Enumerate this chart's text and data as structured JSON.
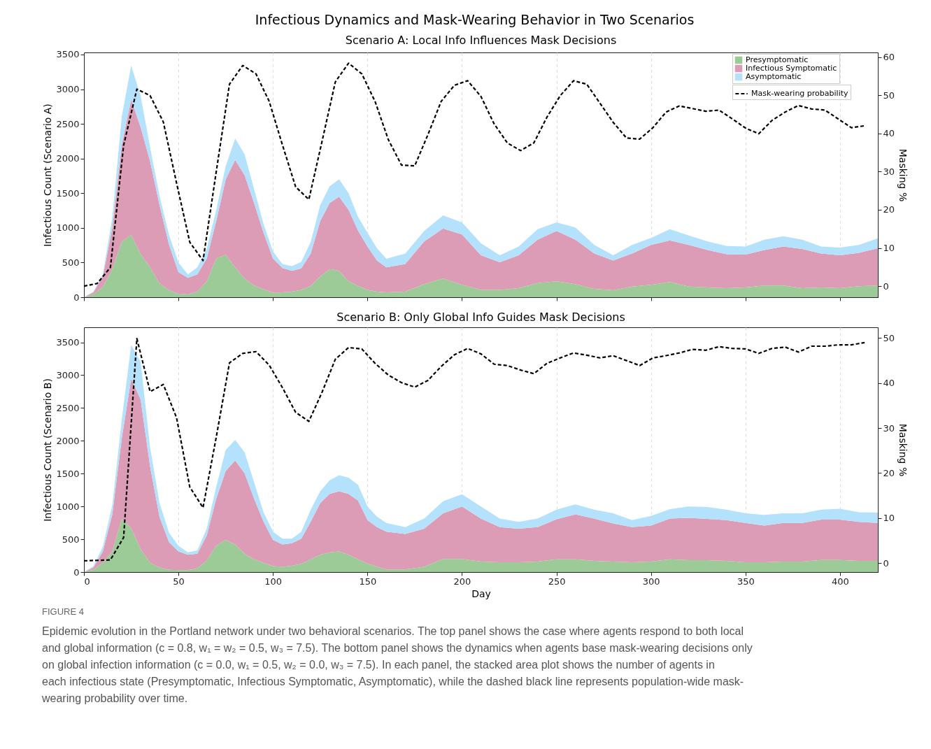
{
  "chart_data": [
    {
      "type": "area",
      "title": "Infectious Dynamics and Mask-Wearing Behavior in Two Scenarios",
      "subtitle": "Scenario A: Local Info Influences Mask Decisions",
      "ylabel": "Infectious Count (Scenario A)",
      "y2label": "Masking %",
      "stacked": true,
      "grid": "x",
      "legend": "top right",
      "tick_labels": "y",
      "xlim": [
        0,
        420
      ],
      "xticks": [
        0,
        50,
        100,
        150,
        200,
        250,
        300,
        350,
        400
      ],
      "ylim": [
        0,
        3530
      ],
      "yticks": [
        0,
        500,
        1000,
        1500,
        2000,
        2500,
        3000,
        3500
      ],
      "y2lim": [
        -2.9,
        61.2
      ],
      "y2ticks": [
        0,
        10,
        20,
        30,
        40,
        50,
        60
      ],
      "x": [
        0,
        5,
        10,
        15,
        20,
        25,
        30,
        35,
        40,
        45,
        50,
        55,
        60,
        65,
        70,
        75,
        80,
        85,
        90,
        95,
        100,
        105,
        110,
        115,
        120,
        125,
        130,
        135,
        140,
        145,
        150,
        155,
        160,
        170,
        180,
        190,
        200,
        210,
        220,
        230,
        240,
        250,
        260,
        270,
        280,
        290,
        300,
        310,
        320,
        330,
        340,
        350,
        360,
        370,
        380,
        390,
        400,
        410,
        420
      ],
      "series": [
        {
          "name": "Presymptomatic",
          "color": "#9ccb98",
          "values": [
            0,
            40,
            150,
            400,
            800,
            900,
            620,
            430,
            200,
            100,
            50,
            40,
            80,
            230,
            560,
            610,
            430,
            270,
            170,
            115,
            65,
            70,
            80,
            105,
            165,
            300,
            405,
            380,
            230,
            165,
            105,
            80,
            70,
            80,
            190,
            270,
            180,
            105,
            105,
            130,
            205,
            230,
            190,
            120,
            100,
            155,
            180,
            220,
            155,
            140,
            130,
            140,
            170,
            170,
            130,
            140,
            130,
            160,
            170
          ]
        },
        {
          "name": "Infectious Symptomatic",
          "color": "#dc9cb5",
          "values": [
            0,
            30,
            150,
            600,
            1400,
            1950,
            1830,
            1530,
            1130,
            660,
            310,
            240,
            250,
            330,
            540,
            1090,
            1550,
            1490,
            1190,
            815,
            495,
            350,
            300,
            310,
            465,
            800,
            955,
            1070,
            1030,
            795,
            625,
            450,
            360,
            400,
            615,
            720,
            725,
            500,
            400,
            475,
            625,
            725,
            640,
            510,
            430,
            475,
            575,
            600,
            600,
            540,
            490,
            475,
            510,
            560,
            565,
            490,
            475,
            480,
            535
          ]
        },
        {
          "name": "Asymptomatic",
          "color": "#b4e1fb",
          "values": [
            0,
            10,
            30,
            150,
            400,
            490,
            450,
            200,
            130,
            140,
            140,
            50,
            100,
            140,
            160,
            190,
            310,
            300,
            200,
            130,
            100,
            60,
            70,
            95,
            170,
            230,
            240,
            250,
            240,
            200,
            200,
            175,
            125,
            150,
            150,
            190,
            175,
            175,
            100,
            125,
            150,
            125,
            175,
            125,
            75,
            125,
            100,
            160,
            135,
            125,
            120,
            115,
            150,
            150,
            135,
            100,
            110,
            115,
            145
          ]
        },
        {
          "name": "Mask-wearing probability",
          "type": "line",
          "axis": "y2",
          "color": "#000000",
          "line_style": "dashed",
          "x": [
            0,
            7,
            14,
            21,
            28,
            35,
            42,
            49,
            56,
            63,
            70,
            77,
            84,
            91,
            98,
            105,
            112,
            119,
            126,
            133,
            140,
            147,
            154,
            161,
            168,
            175,
            182,
            189,
            196,
            203,
            210,
            217,
            224,
            231,
            238,
            245,
            252,
            259,
            266,
            273,
            280,
            287,
            294,
            301,
            308,
            315,
            322,
            329,
            336,
            343,
            350,
            357,
            364,
            371,
            378,
            385,
            392,
            399,
            406,
            413
          ],
          "values": [
            0.0,
            0.7,
            4.9,
            36.9,
            51.6,
            49.9,
            43.0,
            27,
            11.5,
            6.7,
            30,
            52.9,
            57.8,
            55.6,
            48.4,
            37,
            26,
            22.7,
            38,
            53.5,
            58.4,
            55.6,
            48.4,
            38.4,
            31.7,
            31.5,
            39.7,
            48.4,
            52.6,
            53.8,
            49.7,
            42.5,
            37.5,
            35.5,
            37.5,
            44.3,
            49.9,
            53.8,
            52.9,
            47.9,
            42.9,
            38.8,
            38.5,
            41.5,
            45.6,
            47.2,
            46.5,
            45.8,
            46.1,
            43.8,
            41.4,
            39.9,
            43.4,
            45.6,
            47.3,
            46.4,
            46.1,
            43.8,
            41.5,
            42.0
          ]
        }
      ]
    },
    {
      "type": "area",
      "title": "Scenario B: Only Global Info Guides Mask Decisions",
      "xlabel": "Day",
      "ylabel": "Infectious Count (Scenario B)",
      "y2label": "Masking %",
      "stacked": true,
      "grid": "x",
      "xlim": [
        0,
        420
      ],
      "xticks": [
        0,
        50,
        100,
        150,
        200,
        250,
        300,
        350,
        400
      ],
      "ylim": [
        0,
        3730
      ],
      "yticks": [
        0,
        500,
        1000,
        1500,
        2000,
        2500,
        3000,
        3500
      ],
      "y2lim": [
        -2.0,
        52.4
      ],
      "y2ticks": [
        0,
        10,
        20,
        30,
        40,
        50
      ],
      "x": [
        0,
        5,
        10,
        15,
        20,
        25,
        30,
        35,
        40,
        45,
        50,
        55,
        60,
        65,
        70,
        75,
        80,
        85,
        90,
        95,
        100,
        105,
        110,
        115,
        120,
        125,
        130,
        135,
        140,
        145,
        150,
        155,
        160,
        170,
        180,
        190,
        200,
        210,
        220,
        230,
        240,
        250,
        260,
        270,
        280,
        290,
        300,
        310,
        320,
        330,
        340,
        350,
        360,
        370,
        380,
        390,
        400,
        410,
        420
      ],
      "series": [
        {
          "color": "#9ccb98",
          "values": [
            0,
            35,
            140,
            315,
            810,
            670,
            350,
            140,
            70,
            35,
            30,
            30,
            55,
            175,
            405,
            490,
            420,
            280,
            195,
            140,
            90,
            80,
            95,
            125,
            195,
            265,
            300,
            315,
            265,
            195,
            130,
            80,
            40,
            40,
            80,
            200,
            200,
            160,
            150,
            150,
            160,
            195,
            195,
            170,
            160,
            150,
            160,
            195,
            180,
            180,
            170,
            150,
            150,
            160,
            160,
            185,
            185,
            170,
            170
          ]
        },
        {
          "color": "#dc9cb5",
          "values": [
            0,
            35,
            175,
            565,
            1225,
            2280,
            2280,
            1470,
            770,
            420,
            285,
            235,
            225,
            385,
            715,
            1050,
            1280,
            1225,
            925,
            630,
            400,
            340,
            345,
            385,
            575,
            785,
            890,
            915,
            925,
            895,
            660,
            605,
            575,
            540,
            580,
            695,
            800,
            655,
            535,
            510,
            525,
            610,
            685,
            645,
            580,
            535,
            550,
            620,
            645,
            630,
            620,
            600,
            560,
            590,
            590,
            615,
            615,
            595,
            580
          ]
        },
        {
          "color": "#b4e1fb",
          "values": [
            0,
            20,
            70,
            140,
            285,
            510,
            570,
            290,
            210,
            145,
            85,
            35,
            50,
            105,
            180,
            320,
            315,
            320,
            250,
            140,
            125,
            90,
            70,
            105,
            180,
            180,
            210,
            245,
            250,
            240,
            210,
            160,
            135,
            105,
            155,
            185,
            185,
            185,
            130,
            105,
            130,
            145,
            150,
            135,
            155,
            105,
            145,
            145,
            175,
            180,
            160,
            145,
            160,
            145,
            145,
            150,
            165,
            145,
            155
          ]
        },
        {
          "type": "line",
          "axis": "y2",
          "color": "#000000",
          "line_style": "dashed",
          "x": [
            0,
            7,
            14,
            21,
            28,
            35,
            42,
            49,
            56,
            63,
            70,
            77,
            84,
            91,
            98,
            105,
            112,
            119,
            126,
            133,
            140,
            147,
            154,
            161,
            168,
            175,
            182,
            189,
            196,
            203,
            210,
            217,
            224,
            231,
            238,
            245,
            252,
            259,
            266,
            273,
            280,
            287,
            294,
            301,
            308,
            315,
            322,
            329,
            336,
            343,
            350,
            357,
            364,
            371,
            378,
            385,
            392,
            399,
            406,
            413
          ],
          "values": [
            0.5,
            0.6,
            0.7,
            5.7,
            49.9,
            38.1,
            39.7,
            32.3,
            16.9,
            12.3,
            28,
            44.5,
            46.6,
            47.0,
            44.0,
            39,
            33.5,
            31.5,
            38,
            45.3,
            47.9,
            47.6,
            44.4,
            41.8,
            40.1,
            39.1,
            40.6,
            43.7,
            46.3,
            47.7,
            46.5,
            44.2,
            43.9,
            42.9,
            42.1,
            44.4,
            45.6,
            46.7,
            46.2,
            45.6,
            46.1,
            45.0,
            43.9,
            45.6,
            46.1,
            46.7,
            47.5,
            47.3,
            48.1,
            47.7,
            47.6,
            46.6,
            47.7,
            48.0,
            46.9,
            48.2,
            48.2,
            48.5,
            48.5,
            49.0
          ]
        }
      ],
      "annotations": [
        "FIGURE 4",
        "Epidemic evolution in the Portland network under two behavioral scenarios. The top panel shows the case where agents respond to both local and global information (c = 0.8, w₁ = w₂ = 0.5, w₃ = 7.5). The bottom panel shows the dynamics when agents base mask-wearing decisions only on global infection information (c = 0.0, w₁ = 0.5, w₂ = 0.0, w₃ = 7.5). In each panel, the stacked area plot shows the number of agents in each infectious state (Presymptomatic, Infectious Symptomatic, Asymptomatic), while the dashed black line represents population-wide mask-wearing probability over time."
      ]
    }
  ]
}
